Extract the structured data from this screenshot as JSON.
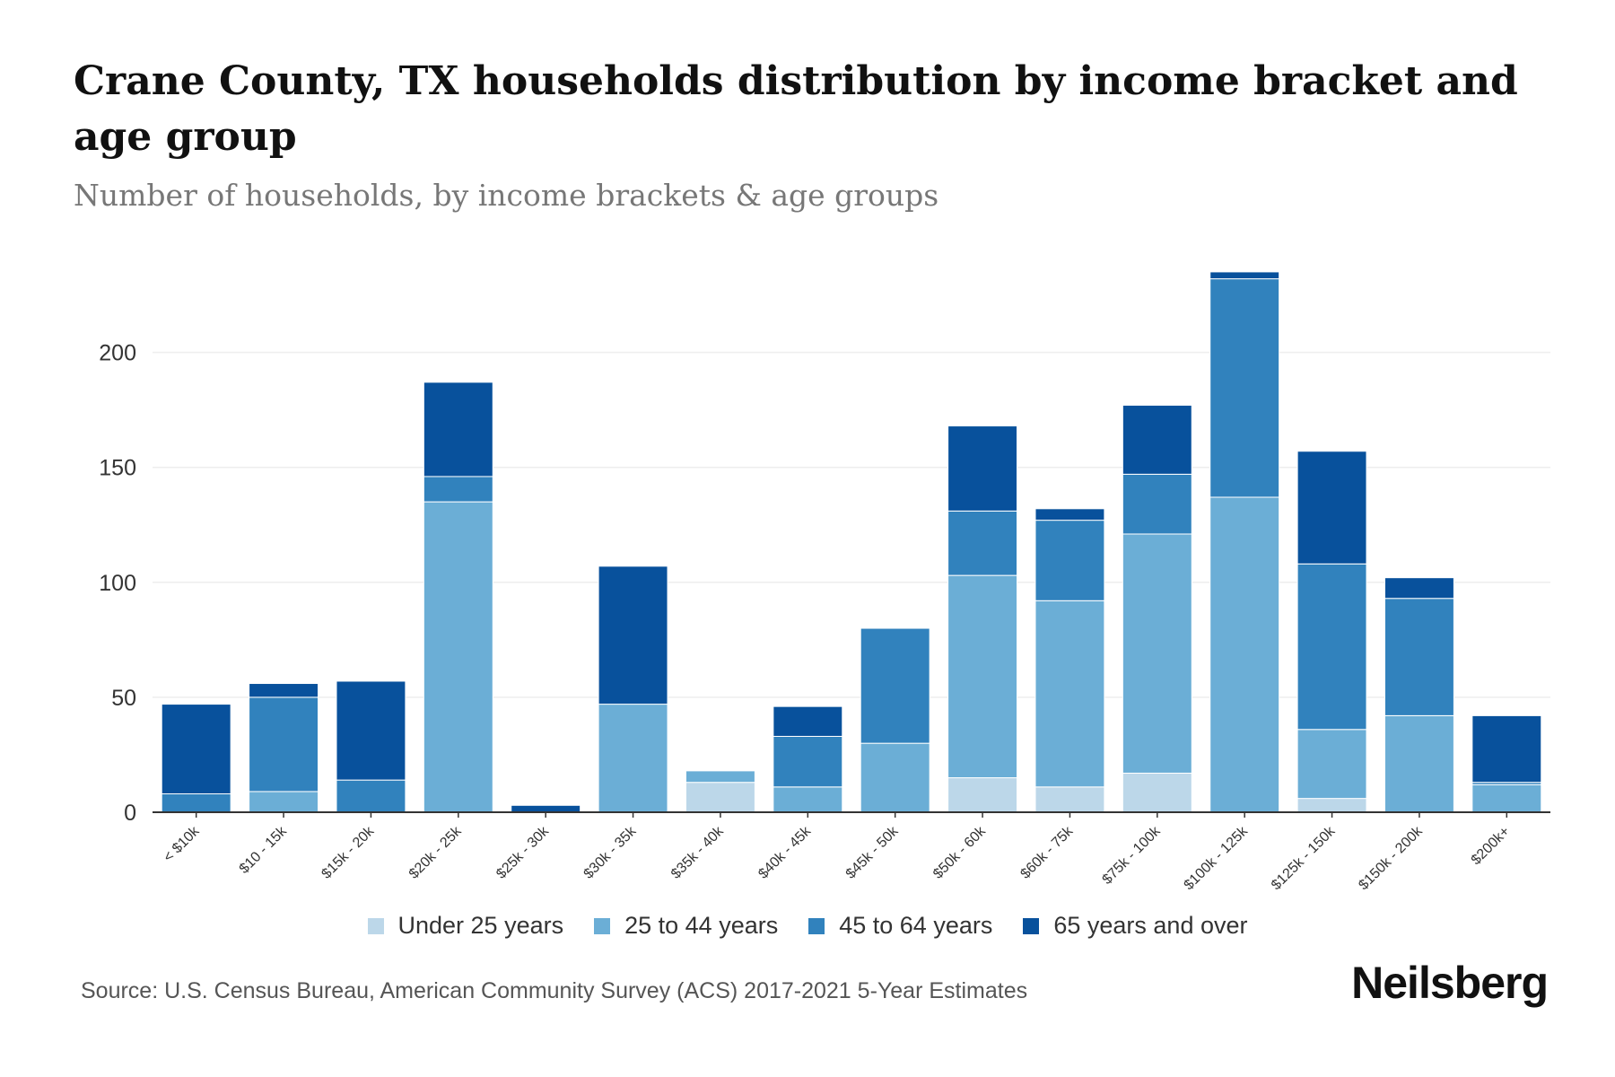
{
  "header": {
    "title": "Crane County, TX households distribution by income bracket and age group",
    "subtitle": "Number of households, by income brackets & age groups"
  },
  "footer": {
    "source": "Source: U.S. Census Bureau, American Community Survey (ACS) 2017-2021 5-Year Estimates",
    "brand": "Neilsberg"
  },
  "chart_data": {
    "type": "bar",
    "stacked": true,
    "title": "Crane County, TX households distribution by income bracket and age group",
    "subtitle": "Number of households, by income brackets & age groups",
    "xlabel": "",
    "ylabel": "",
    "ylim": [
      0,
      240
    ],
    "yticks": [
      0,
      50,
      100,
      150,
      200
    ],
    "grid": true,
    "legend_position": "bottom",
    "categories": [
      "< $10k",
      "$10 - 15k",
      "$15k - 20k",
      "$20k - 25k",
      "$25k - 30k",
      "$30k - 35k",
      "$35k - 40k",
      "$40k - 45k",
      "$45k - 50k",
      "$50k - 60k",
      "$60k - 75k",
      "$75k - 100k",
      "$100k - 125k",
      "$125k - 150k",
      "$150k - 200k",
      "$200k+"
    ],
    "series": [
      {
        "name": "Under 25 years",
        "color": "#bcd7e9",
        "values": [
          0,
          0,
          0,
          0,
          0,
          0,
          13,
          0,
          0,
          15,
          11,
          17,
          0,
          6,
          0,
          0
        ]
      },
      {
        "name": "25 to 44 years",
        "color": "#6baed6",
        "values": [
          0,
          9,
          0,
          135,
          0,
          47,
          5,
          11,
          30,
          88,
          81,
          104,
          137,
          30,
          42,
          12
        ]
      },
      {
        "name": "45 to 64 years",
        "color": "#3182bd",
        "values": [
          8,
          41,
          14,
          11,
          0,
          0,
          0,
          22,
          50,
          28,
          35,
          26,
          95,
          72,
          51,
          1
        ]
      },
      {
        "name": "65 years and over",
        "color": "#08519c",
        "values": [
          39,
          6,
          43,
          41,
          3,
          60,
          0,
          13,
          0,
          37,
          5,
          30,
          3,
          49,
          9,
          29
        ]
      }
    ]
  }
}
